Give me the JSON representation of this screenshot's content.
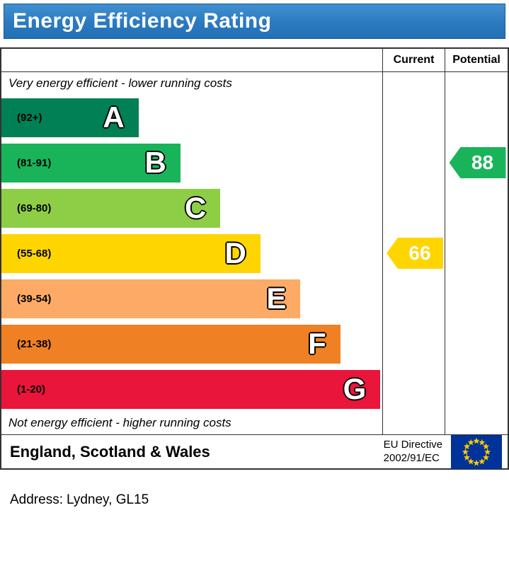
{
  "title": "Energy Efficiency Rating",
  "columns": {
    "current": "Current",
    "potential": "Potential"
  },
  "captions": {
    "top": "Very energy efficient - lower running costs",
    "bottom": "Not energy efficient - higher running costs"
  },
  "chart_data": {
    "type": "bar",
    "subtype": "epc-energy-efficiency-rating",
    "title": "Energy Efficiency Rating",
    "scale": [
      1,
      100
    ],
    "bands": [
      {
        "letter": "A",
        "range_label": "(92+)",
        "range": [
          92,
          100
        ],
        "color": "#008054",
        "width_pct": 36
      },
      {
        "letter": "B",
        "range_label": "(81-91)",
        "range": [
          81,
          91
        ],
        "color": "#19b459",
        "width_pct": 47
      },
      {
        "letter": "C",
        "range_label": "(69-80)",
        "range": [
          69,
          80
        ],
        "color": "#8dce46",
        "width_pct": 57.5
      },
      {
        "letter": "D",
        "range_label": "(55-68)",
        "range": [
          55,
          68
        ],
        "color": "#ffd500",
        "width_pct": 68
      },
      {
        "letter": "E",
        "range_label": "(39-54)",
        "range": [
          39,
          54
        ],
        "color": "#fcaa65",
        "width_pct": 78.5
      },
      {
        "letter": "F",
        "range_label": "(21-38)",
        "range": [
          21,
          38
        ],
        "color": "#ef8023",
        "width_pct": 89
      },
      {
        "letter": "G",
        "range_label": "(1-20)",
        "range": [
          1,
          20
        ],
        "color": "#e9153b",
        "width_pct": 99.5
      }
    ],
    "current": {
      "value": 66,
      "band": "D",
      "color": "#ffd500"
    },
    "potential": {
      "value": 88,
      "band": "B",
      "color": "#19b459"
    }
  },
  "footer": {
    "region": "England, Scotland & Wales",
    "directive_line1": "EU Directive",
    "directive_line2": "2002/91/EC",
    "eu_flag": {
      "background": "#003399",
      "star_color": "#ffcc00"
    }
  },
  "address": {
    "label": "Address:",
    "value": "Lydney, GL15"
  }
}
